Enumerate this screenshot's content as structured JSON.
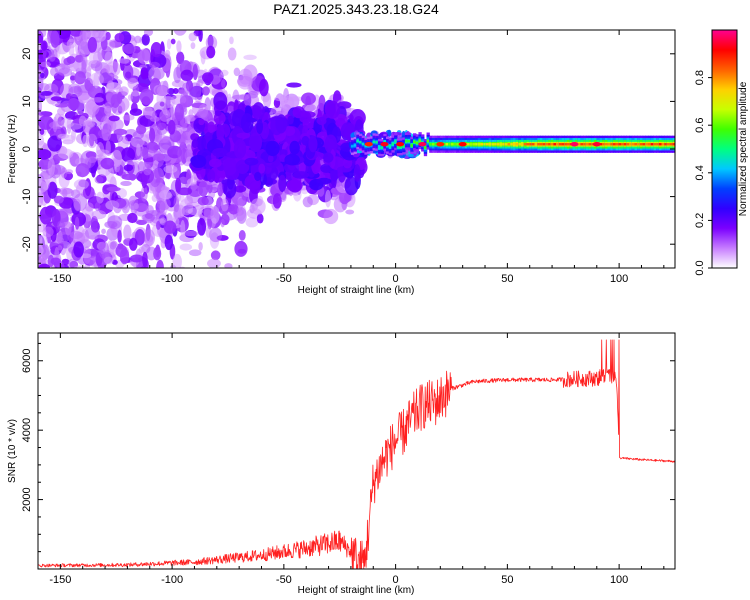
{
  "figure": {
    "title": "PAZ1.2025.343.23.18.G24"
  },
  "chart_data": [
    {
      "type": "heatmap",
      "name": "spectrogram",
      "xlabel": "Height of straight line (km)",
      "ylabel": "Frequency (Hz)",
      "xlim": [
        -160,
        125
      ],
      "ylim": [
        -25,
        25
      ],
      "xticks": [
        -150,
        -100,
        -50,
        0,
        50,
        100
      ],
      "yticks": [
        -20,
        -10,
        0,
        10,
        20
      ],
      "colorbar": {
        "label": "Normalized spectral amplitude",
        "range": [
          0,
          1
        ],
        "ticks": [
          0.0,
          0.2,
          0.4,
          0.6,
          0.8
        ],
        "colormap": [
          "#ffffff",
          "#c77dff",
          "#7b00ff",
          "#3000ff",
          "#0040ff",
          "#00c8ff",
          "#00ff80",
          "#40ff00",
          "#c8ff00",
          "#ffd000",
          "#ff6000",
          "#ff0000",
          "#ff0090"
        ]
      },
      "ridge": {
        "x_start": -20,
        "x_end": 125,
        "frequency": 1,
        "amplitude_left": 0.45,
        "amplitude_right": 0.9
      }
    },
    {
      "type": "line",
      "name": "snr",
      "xlabel": "Height of straight line (km)",
      "ylabel": "SNR (10 * v/v)",
      "xlim": [
        -160,
        125
      ],
      "ylim": [
        0,
        6800
      ],
      "xticks": [
        -150,
        -100,
        -50,
        0,
        50,
        100
      ],
      "yticks": [
        2000,
        4000,
        6000
      ],
      "line_color": "#ff2020",
      "control_points": [
        [
          -160,
          100
        ],
        [
          -120,
          120
        ],
        [
          -90,
          200
        ],
        [
          -60,
          400
        ],
        [
          -40,
          600
        ],
        [
          -25,
          800
        ],
        [
          -20,
          500
        ],
        [
          -17,
          200
        ],
        [
          -14,
          150
        ],
        [
          -12,
          1200
        ],
        [
          -10,
          2500
        ],
        [
          -5,
          3200
        ],
        [
          0,
          3700
        ],
        [
          3,
          3900
        ],
        [
          8,
          4400
        ],
        [
          12,
          4700
        ],
        [
          18,
          4800
        ],
        [
          25,
          5200
        ],
        [
          35,
          5400
        ],
        [
          50,
          5450
        ],
        [
          70,
          5450
        ],
        [
          90,
          5500
        ],
        [
          95,
          5600
        ],
        [
          99,
          5400
        ],
        [
          100,
          3200
        ],
        [
          110,
          3150
        ],
        [
          125,
          3100
        ]
      ]
    }
  ]
}
